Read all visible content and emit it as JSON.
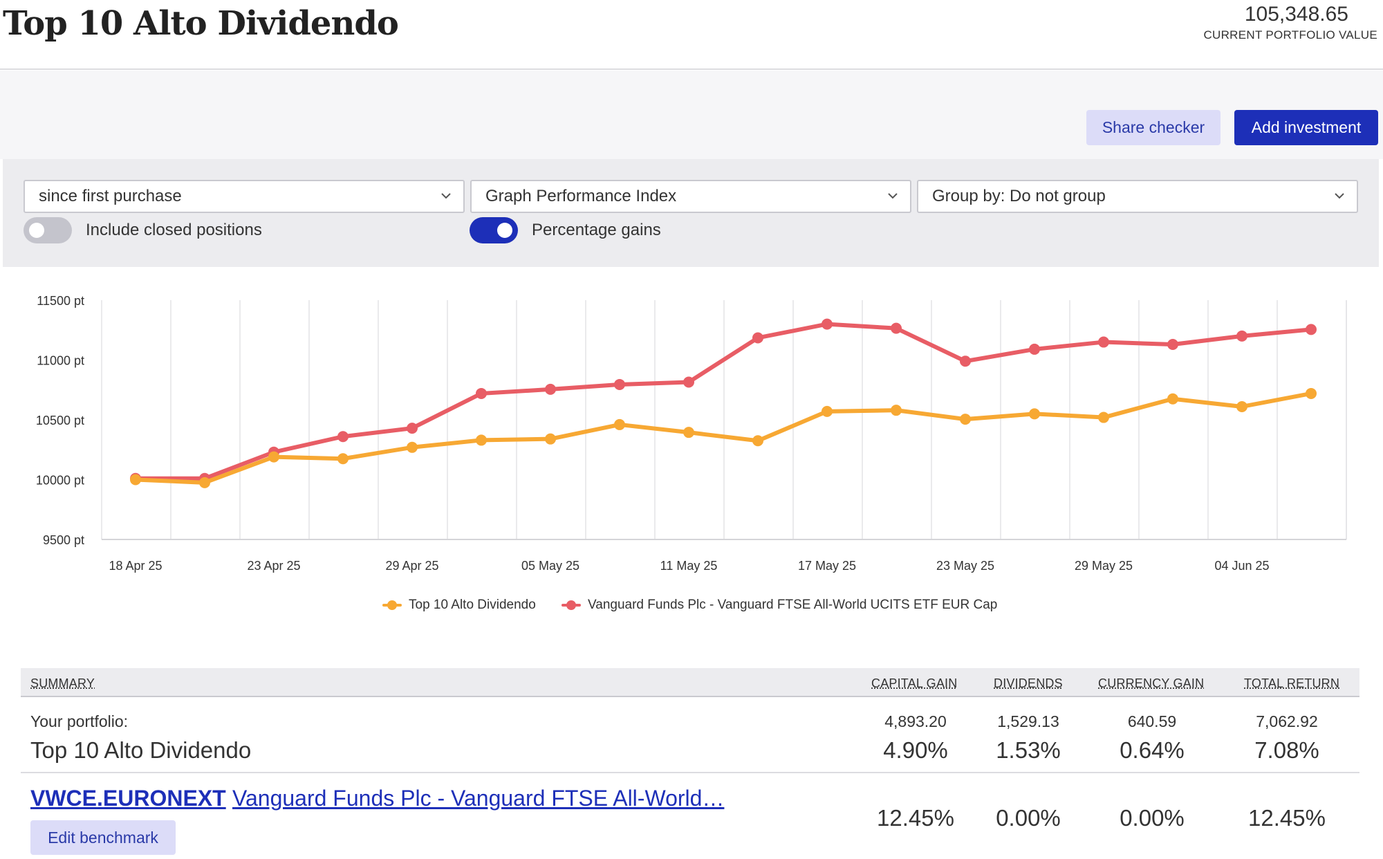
{
  "header": {
    "title": "Top 10 Alto Dividendo",
    "portfolio_value": "105,348.65",
    "portfolio_value_label": "CURRENT PORTFOLIO VALUE"
  },
  "actions": {
    "share_checker": "Share checker",
    "add_investment": "Add investment"
  },
  "filters": {
    "period": "since first purchase",
    "graph_type": "Graph Performance Index",
    "group_by": "Group by: Do not group",
    "include_closed_label": "Include closed positions",
    "include_closed_on": false,
    "percentage_gains_label": "Percentage gains",
    "percentage_gains_on": true
  },
  "colors": {
    "portfolio": "#f7a833",
    "benchmark": "#e85d65",
    "accent": "#1d2fb8"
  },
  "chart_data": {
    "type": "line",
    "y_ticks": [
      "11500 pt",
      "11000 pt",
      "10500 pt",
      "10000 pt",
      "9500 pt"
    ],
    "ylim": [
      9500,
      11500
    ],
    "x_ticks": [
      "18 Apr 25",
      "23 Apr 25",
      "29 Apr 25",
      "05 May 25",
      "11 May 25",
      "17 May 25",
      "23 May 25",
      "29 May 25",
      "04 Jun 25"
    ],
    "grid": true,
    "legend_position": "bottom",
    "series": [
      {
        "name": "Top 10 Alto Dividendo",
        "color": "#f7a833",
        "values": [
          10000,
          9975,
          10190,
          10175,
          10270,
          10330,
          10340,
          10460,
          10395,
          10325,
          10570,
          10580,
          10505,
          10550,
          10520,
          10675,
          10610,
          10720
        ]
      },
      {
        "name": "Vanguard Funds Plc - Vanguard FTSE All-World UCITS ETF EUR Cap",
        "color": "#e85d65",
        "values": [
          10010,
          10010,
          10230,
          10360,
          10430,
          10720,
          10755,
          10795,
          10815,
          11185,
          11300,
          11265,
          10990,
          11090,
          11150,
          11130,
          11200,
          11255
        ]
      }
    ]
  },
  "summary": {
    "headers": {
      "summary": "SUMMARY",
      "capital_gain": "CAPITAL GAIN",
      "dividends": "DIVIDENDS",
      "currency_gain": "CURRENCY GAIN",
      "total_return": "TOTAL RETURN"
    },
    "portfolio": {
      "label": "Your portfolio:",
      "name": "Top 10 Alto Dividendo",
      "capital_gain": "4,893.20",
      "capital_gain_pct": "4.90%",
      "dividends": "1,529.13",
      "dividends_pct": "1.53%",
      "currency_gain": "640.59",
      "currency_gain_pct": "0.64%",
      "total_return": "7,062.92",
      "total_return_pct": "7.08%"
    },
    "benchmark": {
      "ticker": "VWCE.EURONEXT",
      "name": "Vanguard Funds Plc - Vanguard FTSE All-World…",
      "capital_gain_pct": "12.45%",
      "dividends_pct": "0.00%",
      "currency_gain_pct": "0.00%",
      "total_return_pct": "12.45%",
      "edit_label": "Edit benchmark"
    }
  }
}
